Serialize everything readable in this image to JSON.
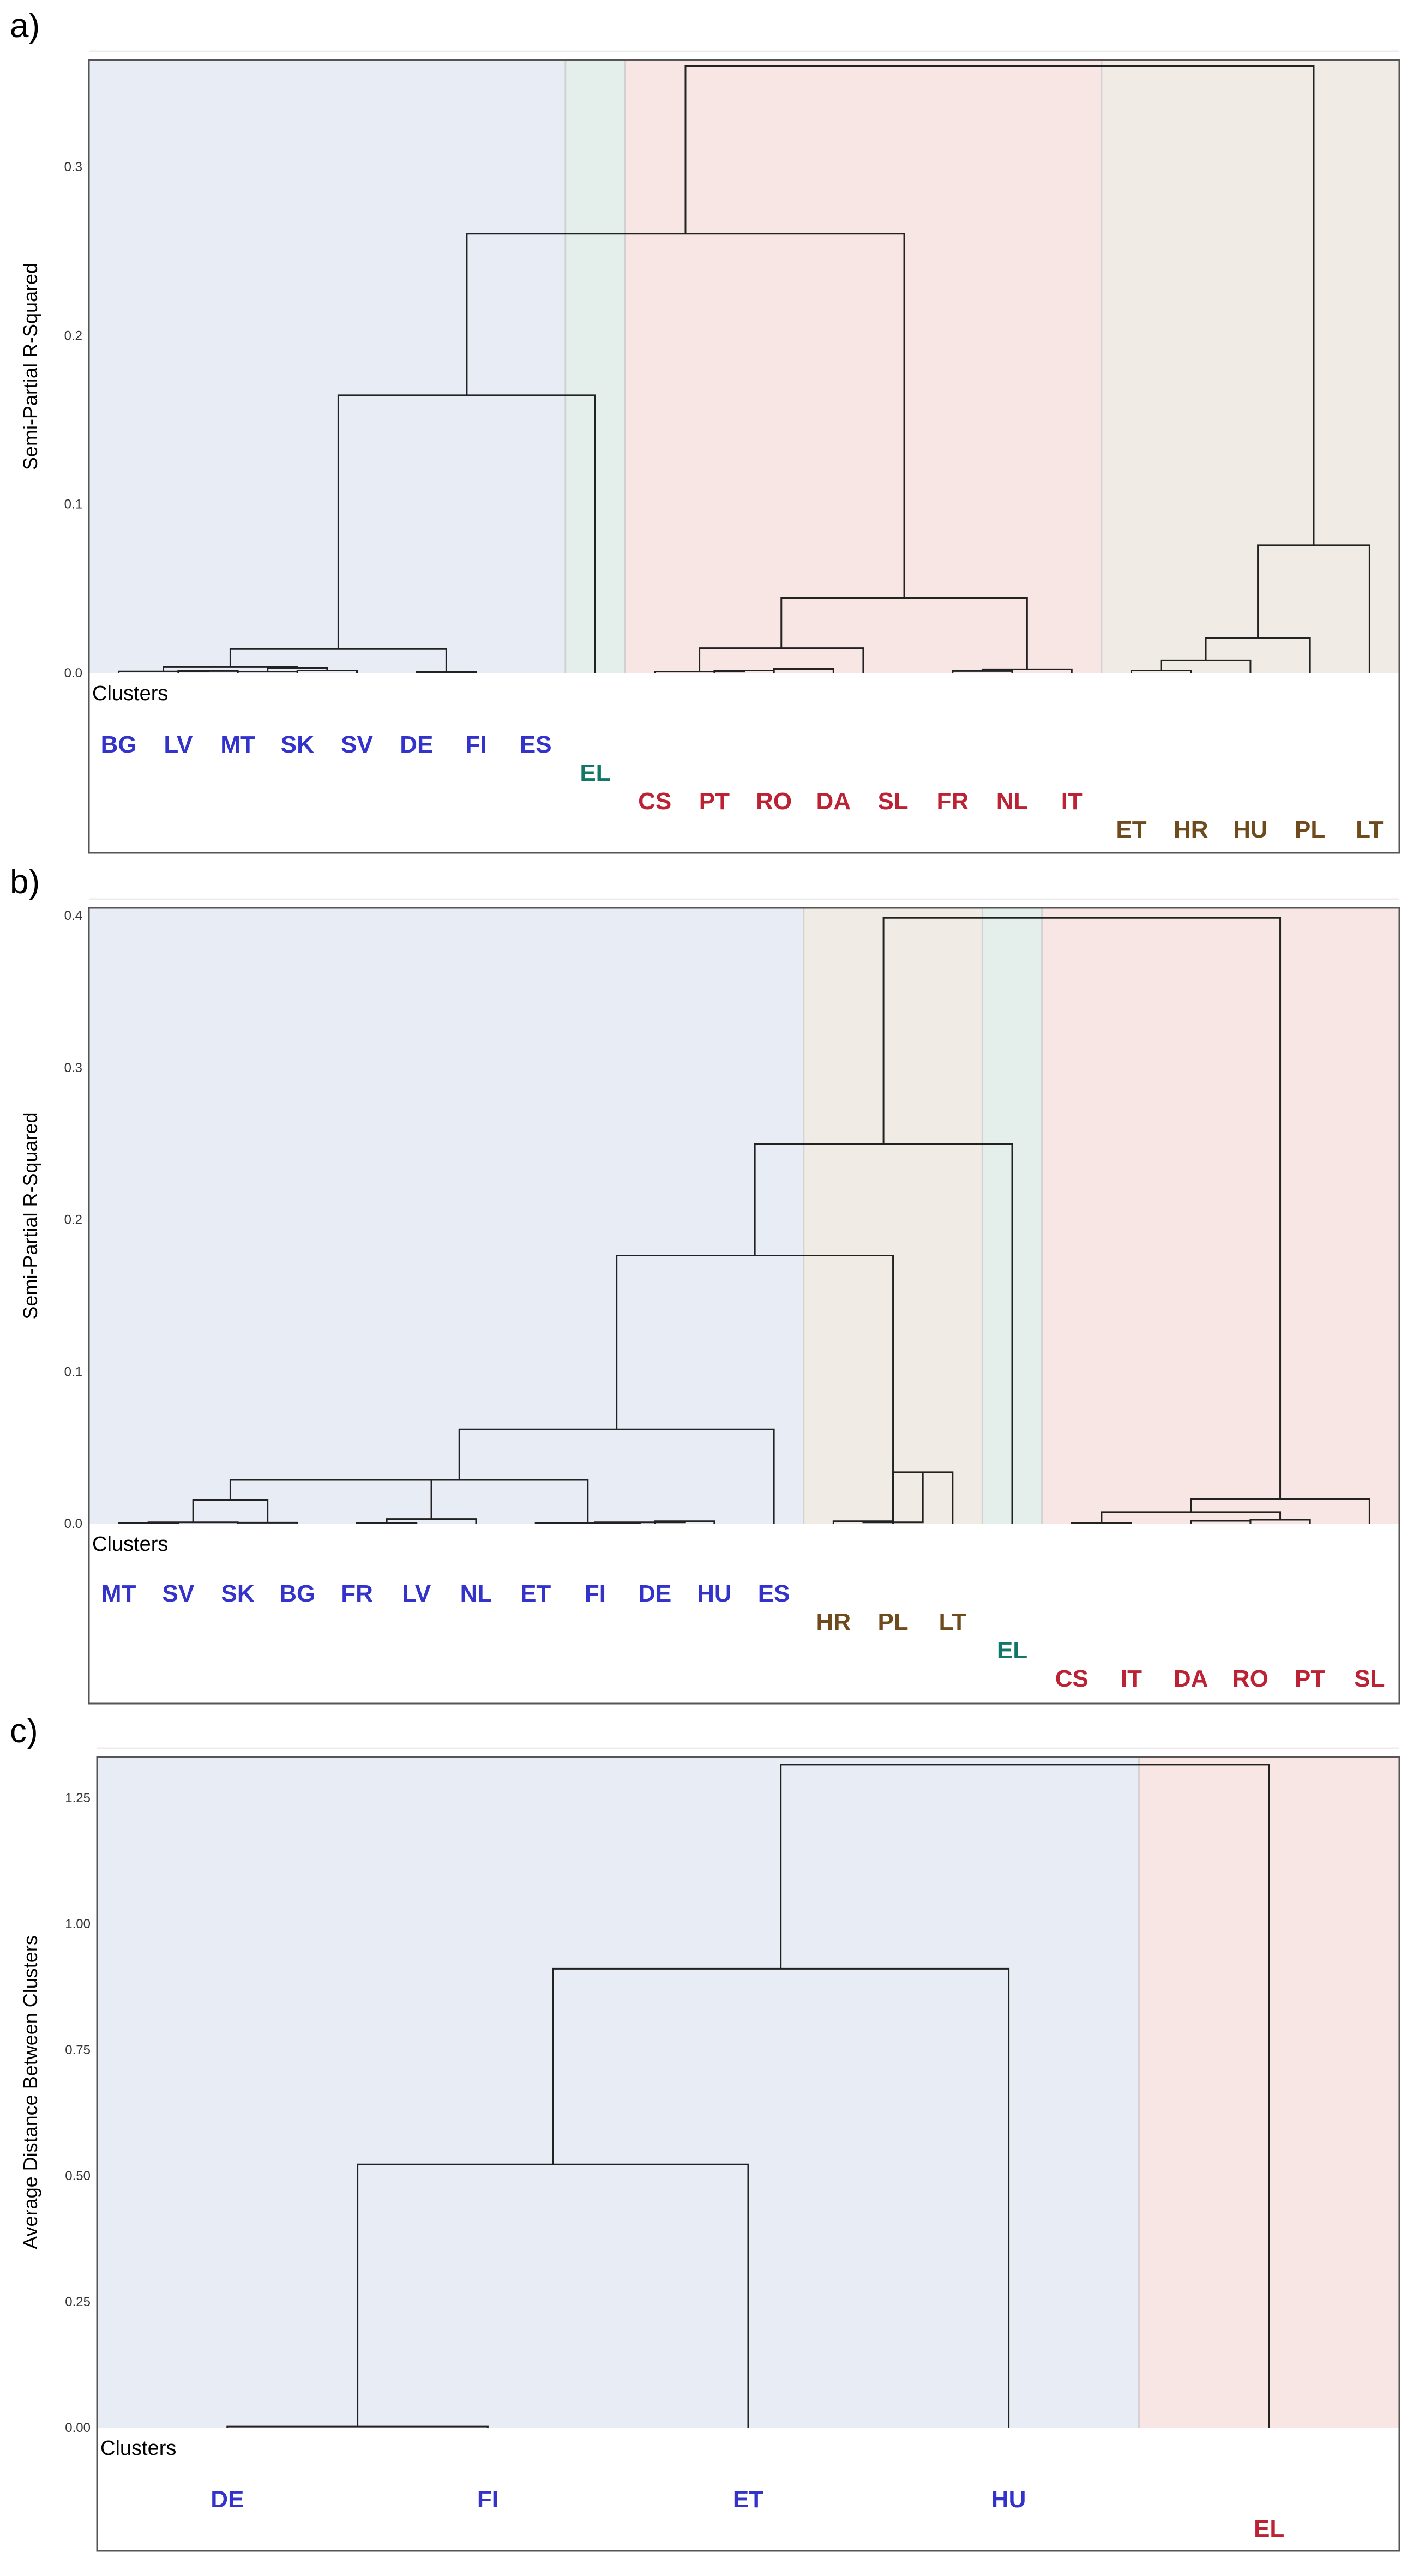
{
  "chart_data": [
    {
      "panel_label": "a)",
      "type": "dendrogram",
      "ylabel": "Semi-Partial R-Squared",
      "ylim": [
        0,
        0.372
      ],
      "yticks": [
        "0.0",
        "0.1",
        "0.2",
        "0.3"
      ],
      "clusters_label": "Clusters",
      "leaves": [
        "BG",
        "LV",
        "MT",
        "SK",
        "SV",
        "DE",
        "FI",
        "ES",
        "EL",
        "CS",
        "PT",
        "RO",
        "DA",
        "SL",
        "FR",
        "NL",
        "IT",
        "ET",
        "HR",
        "HU",
        "PL",
        "LT"
      ],
      "leaf_clusters": [
        0,
        0,
        0,
        0,
        0,
        0,
        0,
        0,
        1,
        2,
        2,
        2,
        2,
        2,
        2,
        2,
        2,
        3,
        3,
        3,
        3,
        3
      ],
      "clusters": [
        {
          "color": "#3333cc",
          "bg": "#e8ecf5"
        },
        {
          "color": "#117766",
          "bg": "#e4efec"
        },
        {
          "color": "#bb2233",
          "bg": "#f7e6e4"
        },
        {
          "color": "#6e4a1c",
          "bg": "#f0ebe4"
        }
      ],
      "merges": [
        {
          "a": [
            1,
            2
          ],
          "h": 0.0012
        },
        {
          "a": [
            2,
            3
          ],
          "h": 0.0008
        },
        {
          "a": [
            3,
            4
          ],
          "h": 0.0015
        },
        {
          "a": [
            5,
            6
          ],
          "h": 0.0005
        },
        {
          "a": [
            0,
            1.5
          ],
          "h": 0.0009
        },
        {
          "a": [
            2.5,
            3.5
          ],
          "h": 0.0028
        },
        {
          "a": [
            0.75,
            3
          ],
          "h": 0.0035
        },
        {
          "a": [
            1.875,
            5.5
          ],
          "h": 0.0145
        },
        {
          "a": [
            3.6875,
            8
          ],
          "h": 0.1685
        },
        {
          "a": [
            10,
            11
          ],
          "h": 0.0015
        },
        {
          "a": [
            9,
            10.5
          ],
          "h": 0.0008
        },
        {
          "a": [
            11,
            12
          ],
          "h": 0.0025
        },
        {
          "a": [
            9.75,
            12.5
          ],
          "h": 0.015
        },
        {
          "a": [
            14,
            15
          ],
          "h": 0.0012
        },
        {
          "a": [
            14.5,
            16
          ],
          "h": 0.0022
        },
        {
          "a": [
            11.125,
            15.25
          ],
          "h": 0.0455
        },
        {
          "a": [
            5.84375,
            13.1875
          ],
          "h": 0.2665
        },
        {
          "a": [
            17,
            18
          ],
          "h": 0.0015
        },
        {
          "a": [
            17.5,
            19
          ],
          "h": 0.0075
        },
        {
          "a": [
            18.25,
            20
          ],
          "h": 0.021
        },
        {
          "a": [
            19.125,
            21
          ],
          "h": 0.0775
        },
        {
          "a": [
            9.515625,
            20.0625
          ],
          "h": 0.3685
        }
      ]
    },
    {
      "panel_label": "b)",
      "type": "dendrogram",
      "ylabel": "Semi-Partial R-Squared",
      "ylim": [
        0,
        0.402
      ],
      "yticks": [
        "0.0",
        "0.1",
        "0.2",
        "0.3",
        "0.4"
      ],
      "clusters_label": "Clusters",
      "leaves": [
        "MT",
        "SV",
        "SK",
        "BG",
        "FR",
        "LV",
        "NL",
        "ET",
        "FI",
        "DE",
        "HU",
        "ES",
        "HR",
        "PL",
        "LT",
        "EL",
        "CS",
        "IT",
        "DA",
        "RO",
        "PT",
        "SL"
      ],
      "leaf_clusters": [
        0,
        0,
        0,
        0,
        0,
        0,
        0,
        0,
        0,
        0,
        0,
        0,
        1,
        1,
        1,
        2,
        3,
        3,
        3,
        3,
        3,
        3
      ],
      "clusters": [
        {
          "color": "#3333cc",
          "bg": "#e8ecf5"
        },
        {
          "color": "#6e4a1c",
          "bg": "#f0ebe4"
        },
        {
          "color": "#117766",
          "bg": "#e4efec"
        },
        {
          "color": "#bb2233",
          "bg": "#f7e6e4"
        }
      ],
      "merges": [
        {
          "a": [
            0,
            1
          ],
          "h": 0.0002
        },
        {
          "a": [
            0.5,
            2
          ],
          "h": 0.0008
        },
        {
          "a": [
            2,
            3
          ],
          "h": 0.0006
        },
        {
          "a": [
            1.25,
            2.5
          ],
          "h": 0.0155
        },
        {
          "a": [
            4,
            5
          ],
          "h": 0.0005
        },
        {
          "a": [
            4.5,
            6
          ],
          "h": 0.003
        },
        {
          "a": [
            1.875,
            5.25
          ],
          "h": 0.0285
        },
        {
          "a": [
            9,
            10
          ],
          "h": 0.0015
        },
        {
          "a": [
            8,
            9.5
          ],
          "h": 0.0008
        },
        {
          "a": [
            7,
            8.75
          ],
          "h": 0.0005
        },
        {
          "a": [
            3.5625,
            7.875
          ],
          "h": 0.0285
        },
        {
          "a": [
            5.71875,
            11
          ],
          "h": 0.0615
        },
        {
          "a": [
            12,
            13
          ],
          "h": 0.0015
        },
        {
          "a": [
            13,
            14
          ],
          "h": 0.0335
        },
        {
          "a": [
            12.5,
            13.5
          ],
          "h": 0.0008
        },
        {
          "a": [
            8.359375,
            13
          ],
          "h": 0.175
        },
        {
          "a": [
            10.6796875,
            15
          ],
          "h": 0.248
        },
        {
          "a": [
            16,
            17
          ],
          "h": 0.0002
        },
        {
          "a": [
            18,
            19
          ],
          "h": 0.0018
        },
        {
          "a": [
            19,
            20
          ],
          "h": 0.0025
        },
        {
          "a": [
            16.5,
            19.5
          ],
          "h": 0.0075
        },
        {
          "a": [
            18,
            21
          ],
          "h": 0.0162
        },
        {
          "a": [
            12.83984375,
            19.5
          ],
          "h": 0.3955
        }
      ]
    },
    {
      "panel_label": "c)",
      "type": "dendrogram",
      "ylabel": "Average Distance Between Clusters",
      "ylim": [
        0,
        1.33
      ],
      "yticks": [
        "0.00",
        "0.25",
        "0.50",
        "0.75",
        "1.00",
        "1.25"
      ],
      "clusters_label": "Clusters",
      "leaves": [
        "DE",
        "FI",
        "ET",
        "HU",
        "EL"
      ],
      "leaf_clusters": [
        0,
        0,
        0,
        0,
        1
      ],
      "clusters": [
        {
          "color": "#3333cc",
          "bg": "#e8ecf5"
        },
        {
          "color": "#bb2233",
          "bg": "#f7e6e4"
        }
      ],
      "merges": [
        {
          "a": [
            0,
            1
          ],
          "h": 0.002
        },
        {
          "a": [
            0.5,
            2
          ],
          "h": 0.522
        },
        {
          "a": [
            1.25,
            3
          ],
          "h": 0.91
        },
        {
          "a": [
            2.125,
            4
          ],
          "h": 1.315
        }
      ]
    }
  ]
}
